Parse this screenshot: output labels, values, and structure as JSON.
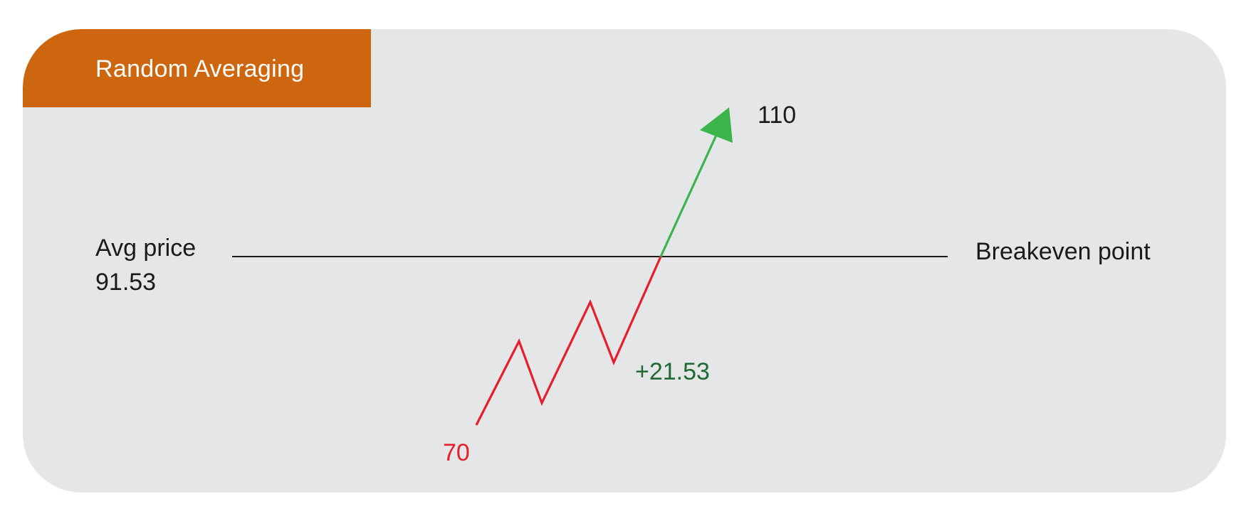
{
  "title": "Random Averaging",
  "avg_price": {
    "label": "Avg price",
    "value": "91.53"
  },
  "breakeven_label": "Breakeven point",
  "target_price": "110",
  "start_price": "70",
  "gain": "+21.53",
  "colors": {
    "card_background": "#e5e6e8",
    "title_tab": "#cd660e",
    "loss_line": "#e51e2a",
    "profit_line": "#3bb54a",
    "gain_text": "#1f6b33",
    "breakeven_line": "#1a1a1a"
  }
}
